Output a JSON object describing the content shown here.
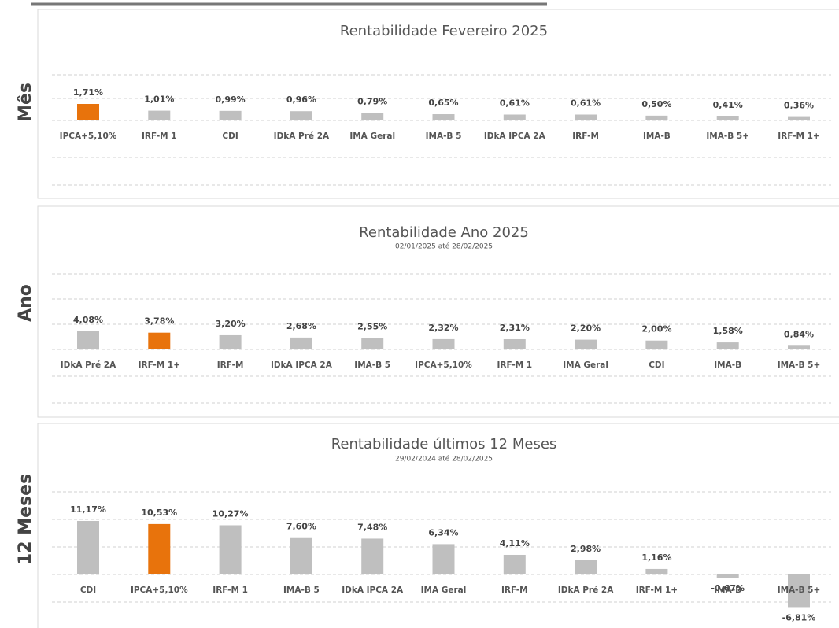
{
  "chart_data": [
    {
      "type": "bar",
      "title": "Rentabilidade Fevereiro 2025",
      "side_label": "Mês",
      "categories": [
        "IPCA+5,10%",
        "IRF-M 1",
        "CDI",
        "IDkA Pré 2A",
        "IMA Geral",
        "IMA-B 5",
        "IDkA IPCA 2A",
        "IRF-M",
        "IMA-B",
        "IMA-B 5+",
        "IRF-M 1+"
      ],
      "values": [
        1.71,
        1.01,
        0.99,
        0.96,
        0.79,
        0.65,
        0.61,
        0.61,
        0.5,
        0.41,
        0.36
      ],
      "value_labels": [
        "1,71%",
        "1,01%",
        "0,99%",
        "0,96%",
        "0,79%",
        "0,65%",
        "0,61%",
        "0,61%",
        "0,50%",
        "0,41%",
        "0,36%"
      ],
      "colors": [
        "#e8730c",
        "#bfbfbf",
        "#bfbfbf",
        "#bfbfbf",
        "#bfbfbf",
        "#bfbfbf",
        "#bfbfbf",
        "#bfbfbf",
        "#bfbfbf",
        "#bfbfbf",
        "#bfbfbf"
      ]
    },
    {
      "type": "bar",
      "title": "Rentabilidade Ano 2025",
      "subtitle": "02/01/2025 até 28/02/2025",
      "side_label": "Ano",
      "categories": [
        "IDkA Pré 2A",
        "IRF-M 1+",
        "IRF-M",
        "IDkA IPCA 2A",
        "IMA-B 5",
        "IPCA+5,10%",
        "IRF-M 1",
        "IMA Geral",
        "CDI",
        "IMA-B",
        "IMA-B 5+"
      ],
      "values": [
        4.08,
        3.78,
        3.2,
        2.68,
        2.55,
        2.32,
        2.31,
        2.2,
        2.0,
        1.58,
        0.84
      ],
      "value_labels": [
        "4,08%",
        "3,78%",
        "3,20%",
        "2,68%",
        "2,55%",
        "2,32%",
        "2,31%",
        "2,20%",
        "2,00%",
        "1,58%",
        "0,84%"
      ],
      "colors": [
        "#bfbfbf",
        "#e8730c",
        "#bfbfbf",
        "#bfbfbf",
        "#bfbfbf",
        "#bfbfbf",
        "#bfbfbf",
        "#bfbfbf",
        "#bfbfbf",
        "#bfbfbf",
        "#bfbfbf"
      ]
    },
    {
      "type": "bar",
      "title": "Rentabilidade últimos 12 Meses",
      "subtitle": "29/02/2024 até 28/02/2025",
      "side_label": "12 Meses",
      "categories": [
        "CDI",
        "IPCA+5,10%",
        "IRF-M 1",
        "IMA-B 5",
        "IDkA IPCA 2A",
        "IMA Geral",
        "IRF-M",
        "IDkA Pré 2A",
        "IRF-M 1+",
        "IMA-B",
        "IMA-B 5+"
      ],
      "values": [
        11.17,
        10.53,
        10.27,
        7.6,
        7.48,
        6.34,
        4.11,
        2.98,
        1.16,
        -0.67,
        -6.81
      ],
      "value_labels": [
        "11,17%",
        "10,53%",
        "10,27%",
        "7,60%",
        "7,48%",
        "6,34%",
        "4,11%",
        "2,98%",
        "1,16%",
        "-0,67%",
        "-6,81%"
      ],
      "colors": [
        "#bfbfbf",
        "#e8730c",
        "#bfbfbf",
        "#bfbfbf",
        "#bfbfbf",
        "#bfbfbf",
        "#bfbfbf",
        "#bfbfbf",
        "#bfbfbf",
        "#bfbfbf",
        "#bfbfbf"
      ]
    }
  ]
}
